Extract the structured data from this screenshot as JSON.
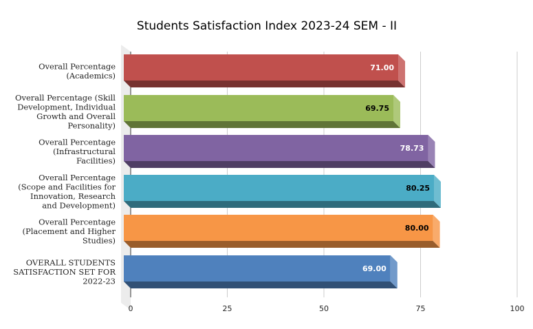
{
  "chart_data": {
    "type": "bar",
    "orientation": "horizontal",
    "style": "3d",
    "title": "Students Satisfaction Index 2023-24 SEM - II",
    "categories": [
      [
        "Overall Percentage",
        "(Academics)"
      ],
      [
        "Overall Percentage (Skill",
        "Development, Individual",
        "Growth and Overall",
        "Personality)"
      ],
      [
        "Overall Percentage",
        "(Infrastructural",
        "Facilities)"
      ],
      [
        "Overall Percentage",
        "(Scope and Facilities for",
        "Innovation, Research",
        "and Development)"
      ],
      [
        "Overall Percentage",
        "(Placement and Higher",
        "Studies)"
      ],
      [
        "OVERALL STUDENTS",
        "SATISFACTION SET FOR",
        "2022-23"
      ]
    ],
    "values": [
      71.0,
      69.75,
      78.73,
      80.25,
      80.0,
      69.0
    ],
    "value_labels": [
      "71.00",
      "69.75",
      "78.73",
      "80.25",
      "80.00",
      "69.00"
    ],
    "colors": [
      "#c0504d",
      "#9bbb59",
      "#8064a2",
      "#4bacc6",
      "#f79646",
      "#4f81bd"
    ],
    "label_colors": [
      "#ffffff",
      "#000000",
      "#ffffff",
      "#000000",
      "#000000",
      "#ffffff"
    ],
    "xlim": [
      0,
      100
    ],
    "xticks": [
      "0",
      "25",
      "50",
      "75",
      "100"
    ],
    "grid": true,
    "xlabel": "",
    "ylabel": ""
  }
}
